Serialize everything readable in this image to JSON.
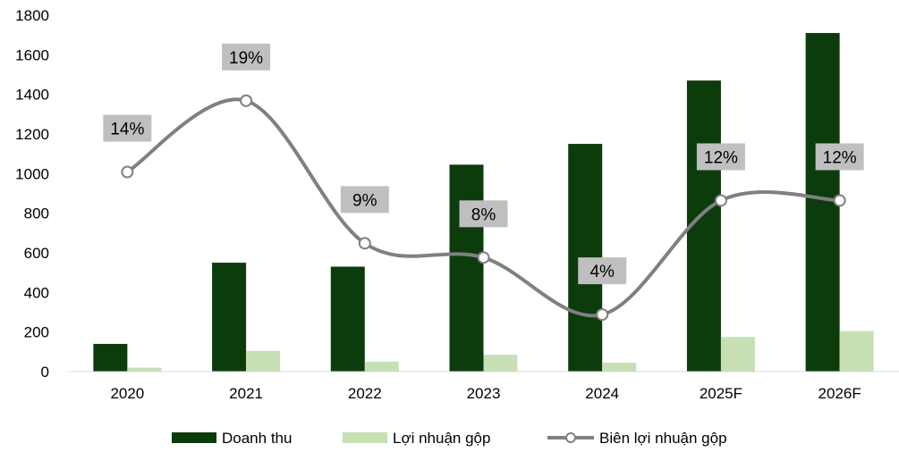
{
  "chart_data": {
    "type": "bar",
    "categories": [
      "2020",
      "2021",
      "2022",
      "2023",
      "2024",
      "2025F",
      "2026F"
    ],
    "series": [
      {
        "name": "Doanh thu",
        "type": "bar",
        "color": "#0c3b0c",
        "values": [
          140,
          550,
          530,
          1045,
          1150,
          1470,
          1710
        ]
      },
      {
        "name": "Lợi nhuận gộp",
        "type": "bar",
        "color": "#c6e0b4",
        "values": [
          20,
          105,
          50,
          85,
          45,
          175,
          205
        ]
      },
      {
        "name": "Biên lợi nhuận gộp",
        "type": "line",
        "color": "#808080",
        "values": [
          14,
          19,
          9,
          8,
          4,
          12,
          12
        ]
      }
    ],
    "line_labels": [
      "14%",
      "19%",
      "9%",
      "8%",
      "4%",
      "12%",
      "12%"
    ],
    "ylim": [
      0,
      1800
    ],
    "yticks": [
      "0",
      "200",
      "400",
      "600",
      "800",
      "1000",
      "1200",
      "1400",
      "1600",
      "1800"
    ],
    "line_label_bg": "#bfbfbf",
    "legend_position": "bottom",
    "grid": false
  }
}
